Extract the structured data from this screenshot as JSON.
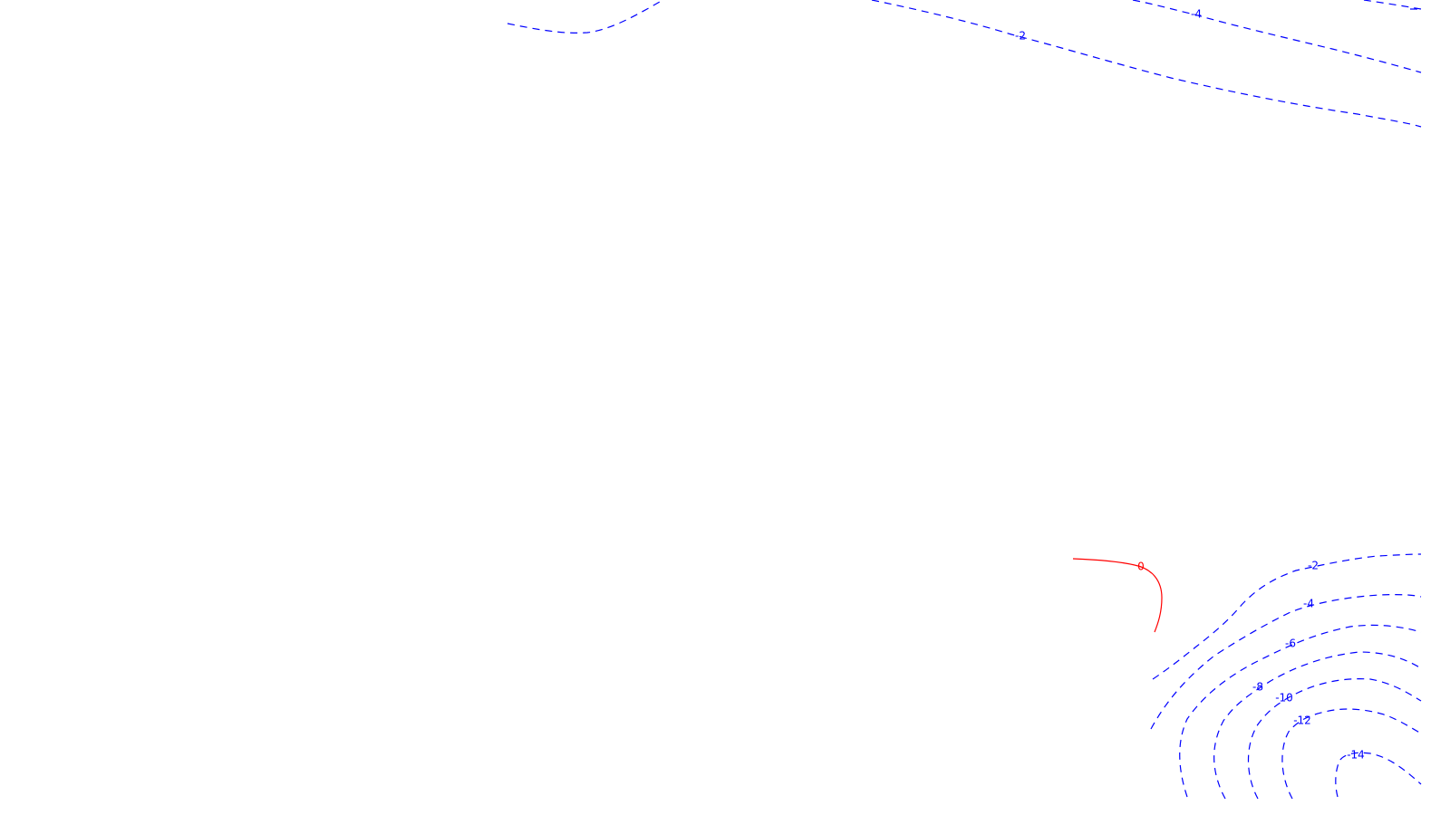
{
  "map": {
    "background_color": "#ffffff",
    "colors": {
      "negative": "#0000ff",
      "zero": "#ff0000"
    },
    "contours": [
      {
        "label": "-2"
      },
      {
        "label": "-2"
      },
      {
        "label": "-4"
      },
      {
        "label": ""
      },
      {
        "label": ""
      },
      {
        "label": "0"
      },
      {
        "label": "-2"
      },
      {
        "label": "-4"
      },
      {
        "label": "-6"
      },
      {
        "label": "-8"
      },
      {
        "label": "-10"
      },
      {
        "label": "-12"
      },
      {
        "label": "-14"
      }
    ]
  }
}
